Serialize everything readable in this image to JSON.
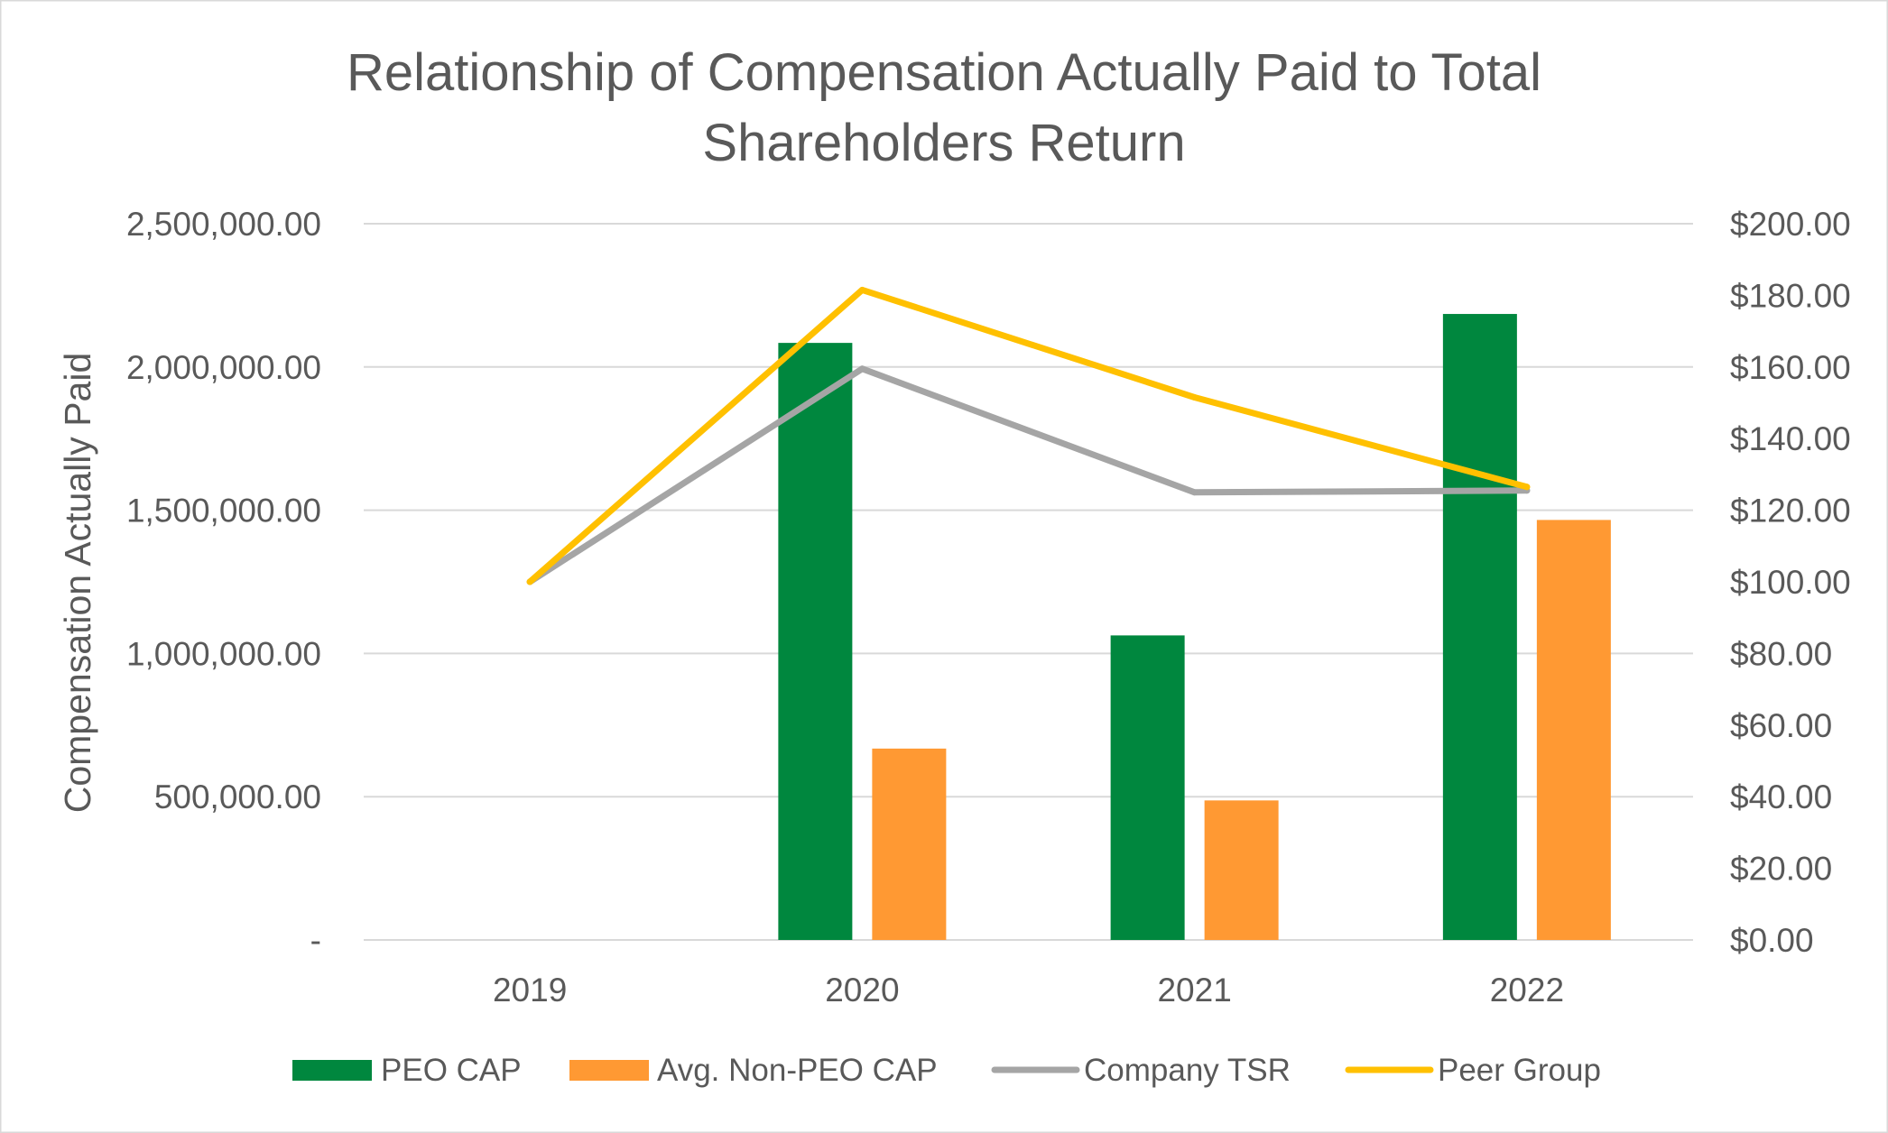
{
  "chart_data": {
    "type": "bar",
    "title_lines": [
      "Relationship of Compensation Actually Paid to Total",
      "Shareholders Return"
    ],
    "xlabel": "",
    "ylabel": "Compensation Actually Paid",
    "categories": [
      "2019",
      "2020",
      "2021",
      "2022"
    ],
    "ylim": [
      0,
      2500000
    ],
    "yticks": [
      0,
      500000,
      1000000,
      1500000,
      2000000,
      2500000
    ],
    "ytick_labels": [
      "-",
      "500,000.00",
      "1,000,000.00",
      "1,500,000.00",
      "2,000,000.00",
      "2,500,000.00"
    ],
    "y2lim": [
      0,
      200
    ],
    "y2ticks": [
      0,
      20,
      40,
      60,
      80,
      100,
      120,
      140,
      160,
      180,
      200
    ],
    "y2tick_labels": [
      "$0.00",
      "$20.00",
      "$40.00",
      "$60.00",
      "$80.00",
      "$100.00",
      "$120.00",
      "$140.00",
      "$160.00",
      "$180.00",
      "$200.00"
    ],
    "grid": true,
    "legend_position": "bottom",
    "colors": {
      "text": "#595959",
      "grid": "#D9D9D9",
      "frame": "#D9D9D9"
    },
    "series": [
      {
        "name": "PEO CAP",
        "type": "bar",
        "axis": "left",
        "color": "#00873E",
        "values": [
          null,
          2084000,
          1063000,
          2185000
        ]
      },
      {
        "name": "Avg. Non-PEO CAP",
        "type": "bar",
        "axis": "left",
        "color": "#FF9933",
        "values": [
          null,
          668000,
          487000,
          1466000
        ]
      },
      {
        "name": "Company TSR",
        "type": "line",
        "axis": "right",
        "color": "#A5A5A5",
        "values": [
          100,
          159.5,
          125,
          125.5
        ]
      },
      {
        "name": "Peer Group",
        "type": "line",
        "axis": "right",
        "color": "#FFC000",
        "values": [
          100,
          181.5,
          151.5,
          126.5
        ]
      }
    ]
  }
}
